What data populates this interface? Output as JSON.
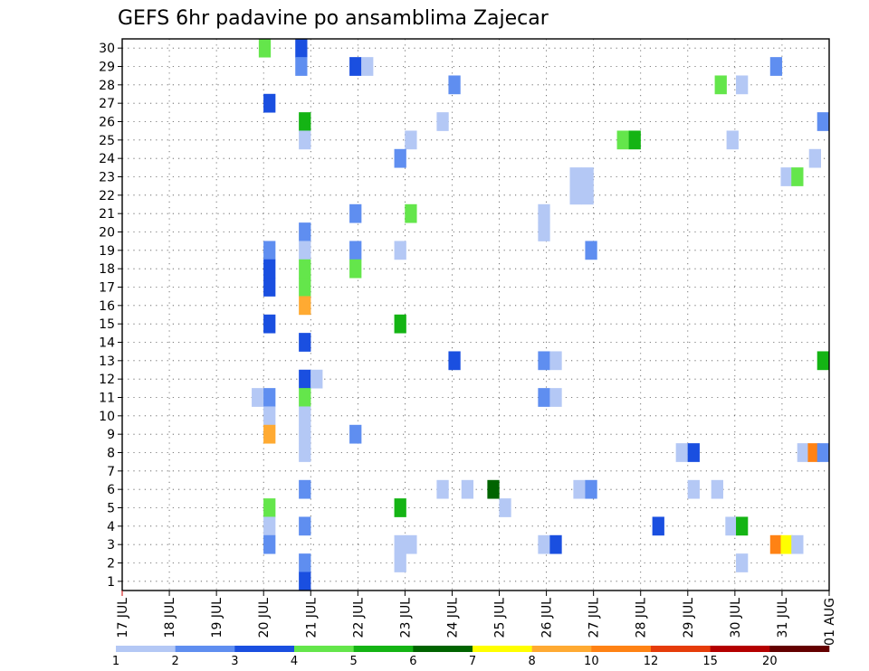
{
  "chart_data": {
    "type": "heatmap",
    "title": "GEFS 6hr padavine po ansamblima Zajecar",
    "xlabel": "",
    "ylabel": "",
    "x_tick_labels": [
      "17 JUL",
      "18 JUL",
      "19 JUL",
      "20 JUL",
      "21 JUL",
      "22 JUL",
      "23 JUL",
      "24 JUL",
      "25 JUL",
      "26 JUL",
      "27 JUL",
      "28 JUL",
      "29 JUL",
      "30 JUL",
      "31 JUL",
      "01 AUG"
    ],
    "y_tick_labels": [
      "1",
      "2",
      "3",
      "4",
      "5",
      "6",
      "7",
      "8",
      "9",
      "10",
      "11",
      "12",
      "13",
      "14",
      "15",
      "16",
      "17",
      "18",
      "19",
      "20",
      "21",
      "22",
      "23",
      "24",
      "25",
      "26",
      "27",
      "28",
      "29",
      "30"
    ],
    "x_unit": "6-hour step",
    "xlim": [
      0,
      60
    ],
    "ylim": [
      0.5,
      30.5
    ],
    "grid": true,
    "levels": [
      1,
      2,
      3,
      4,
      5,
      6,
      7,
      8,
      10,
      12,
      15,
      20
    ],
    "colors": [
      "#b4c8f5",
      "#5f8ef0",
      "#1a4fe0",
      "#64e64b",
      "#14b414",
      "#006400",
      "#ffff00",
      "#ffaa32",
      "#ff8214",
      "#e63c0a",
      "#b40000",
      "#640000"
    ],
    "cells": [
      {
        "t": 12.1,
        "m": 30,
        "c": 4
      },
      {
        "t": 15.2,
        "m": 30,
        "c": 3
      },
      {
        "t": 15.2,
        "m": 29,
        "c": 2
      },
      {
        "t": 19.8,
        "m": 29,
        "c": 3
      },
      {
        "t": 20.8,
        "m": 29,
        "c": 1
      },
      {
        "t": 55.5,
        "m": 29,
        "c": 2
      },
      {
        "t": 28.2,
        "m": 28,
        "c": 2
      },
      {
        "t": 50.8,
        "m": 28,
        "c": 4
      },
      {
        "t": 52.6,
        "m": 28,
        "c": 1
      },
      {
        "t": 12.5,
        "m": 27,
        "c": 3
      },
      {
        "t": 15.5,
        "m": 26,
        "c": 5
      },
      {
        "t": 27.2,
        "m": 26,
        "c": 1
      },
      {
        "t": 59.8,
        "m": 26,
        "c": 2
      },
      {
        "t": 15.5,
        "m": 25,
        "c": 1
      },
      {
        "t": 24.5,
        "m": 25,
        "c": 1
      },
      {
        "t": 42.5,
        "m": 25,
        "c": 4
      },
      {
        "t": 43.5,
        "m": 25,
        "c": 5
      },
      {
        "t": 51.8,
        "m": 25,
        "c": 1
      },
      {
        "t": 23.6,
        "m": 24,
        "c": 2
      },
      {
        "t": 58.8,
        "m": 24,
        "c": 1
      },
      {
        "t": 38.5,
        "m": 23,
        "c": 1
      },
      {
        "t": 39.5,
        "m": 23,
        "c": 1
      },
      {
        "t": 56.4,
        "m": 23,
        "c": 1
      },
      {
        "t": 57.3,
        "m": 23,
        "c": 4
      },
      {
        "t": 38.5,
        "m": 22,
        "c": 1
      },
      {
        "t": 39.5,
        "m": 22,
        "c": 1
      },
      {
        "t": 19.8,
        "m": 21,
        "c": 2
      },
      {
        "t": 24.5,
        "m": 21,
        "c": 4
      },
      {
        "t": 35.8,
        "m": 21,
        "c": 1
      },
      {
        "t": 15.5,
        "m": 20,
        "c": 2
      },
      {
        "t": 35.8,
        "m": 20,
        "c": 1
      },
      {
        "t": 12.5,
        "m": 19,
        "c": 2
      },
      {
        "t": 15.5,
        "m": 19,
        "c": 1
      },
      {
        "t": 19.8,
        "m": 19,
        "c": 2
      },
      {
        "t": 23.6,
        "m": 19,
        "c": 1
      },
      {
        "t": 39.8,
        "m": 19,
        "c": 2
      },
      {
        "t": 12.5,
        "m": 18,
        "c": 3
      },
      {
        "t": 15.5,
        "m": 18,
        "c": 4
      },
      {
        "t": 19.8,
        "m": 18,
        "c": 4
      },
      {
        "t": 12.5,
        "m": 17,
        "c": 3
      },
      {
        "t": 15.5,
        "m": 17,
        "c": 4
      },
      {
        "t": 15.5,
        "m": 16,
        "c": 8
      },
      {
        "t": 12.5,
        "m": 15,
        "c": 3
      },
      {
        "t": 23.6,
        "m": 15,
        "c": 5
      },
      {
        "t": 15.5,
        "m": 14,
        "c": 3
      },
      {
        "t": 28.2,
        "m": 13,
        "c": 3
      },
      {
        "t": 35.8,
        "m": 13,
        "c": 2
      },
      {
        "t": 36.8,
        "m": 13,
        "c": 1
      },
      {
        "t": 59.9,
        "m": 13,
        "c": 5
      },
      {
        "t": 15.5,
        "m": 12,
        "c": 3
      },
      {
        "t": 16.5,
        "m": 12,
        "c": 1
      },
      {
        "t": 11.5,
        "m": 11,
        "c": 1
      },
      {
        "t": 12.5,
        "m": 11,
        "c": 2
      },
      {
        "t": 15.5,
        "m": 11,
        "c": 4
      },
      {
        "t": 35.8,
        "m": 11,
        "c": 2
      },
      {
        "t": 36.8,
        "m": 11,
        "c": 1
      },
      {
        "t": 12.5,
        "m": 10,
        "c": 1
      },
      {
        "t": 15.5,
        "m": 10,
        "c": 1
      },
      {
        "t": 12.5,
        "m": 9,
        "c": 8
      },
      {
        "t": 15.5,
        "m": 9,
        "c": 1
      },
      {
        "t": 19.8,
        "m": 9,
        "c": 2
      },
      {
        "t": 15.5,
        "m": 8,
        "c": 1
      },
      {
        "t": 47.5,
        "m": 8,
        "c": 1
      },
      {
        "t": 48.5,
        "m": 8,
        "c": 3
      },
      {
        "t": 57.8,
        "m": 8,
        "c": 1
      },
      {
        "t": 58.7,
        "m": 8,
        "c": 9
      },
      {
        "t": 59.6,
        "m": 8,
        "c": 2
      },
      {
        "t": 15.5,
        "m": 6,
        "c": 2
      },
      {
        "t": 27.2,
        "m": 6,
        "c": 1
      },
      {
        "t": 29.3,
        "m": 6,
        "c": 1
      },
      {
        "t": 31.5,
        "m": 6,
        "c": 6
      },
      {
        "t": 38.8,
        "m": 6,
        "c": 1
      },
      {
        "t": 39.8,
        "m": 6,
        "c": 2
      },
      {
        "t": 48.5,
        "m": 6,
        "c": 1
      },
      {
        "t": 50.5,
        "m": 6,
        "c": 1
      },
      {
        "t": 12.5,
        "m": 5,
        "c": 4
      },
      {
        "t": 23.6,
        "m": 5,
        "c": 5
      },
      {
        "t": 32.5,
        "m": 5,
        "c": 1
      },
      {
        "t": 12.5,
        "m": 4,
        "c": 1
      },
      {
        "t": 15.5,
        "m": 4,
        "c": 2
      },
      {
        "t": 45.5,
        "m": 4,
        "c": 3
      },
      {
        "t": 51.7,
        "m": 4,
        "c": 1
      },
      {
        "t": 52.6,
        "m": 4,
        "c": 5
      },
      {
        "t": 12.5,
        "m": 3,
        "c": 2
      },
      {
        "t": 23.6,
        "m": 3,
        "c": 1
      },
      {
        "t": 24.5,
        "m": 3,
        "c": 1
      },
      {
        "t": 35.8,
        "m": 3,
        "c": 1
      },
      {
        "t": 36.8,
        "m": 3,
        "c": 3
      },
      {
        "t": 55.5,
        "m": 3,
        "c": 9
      },
      {
        "t": 56.4,
        "m": 3,
        "c": 7
      },
      {
        "t": 57.3,
        "m": 3,
        "c": 1
      },
      {
        "t": 15.5,
        "m": 2,
        "c": 2
      },
      {
        "t": 23.6,
        "m": 2,
        "c": 1
      },
      {
        "t": 52.6,
        "m": 2,
        "c": 1
      },
      {
        "t": 15.5,
        "m": 1,
        "c": 3
      }
    ]
  }
}
